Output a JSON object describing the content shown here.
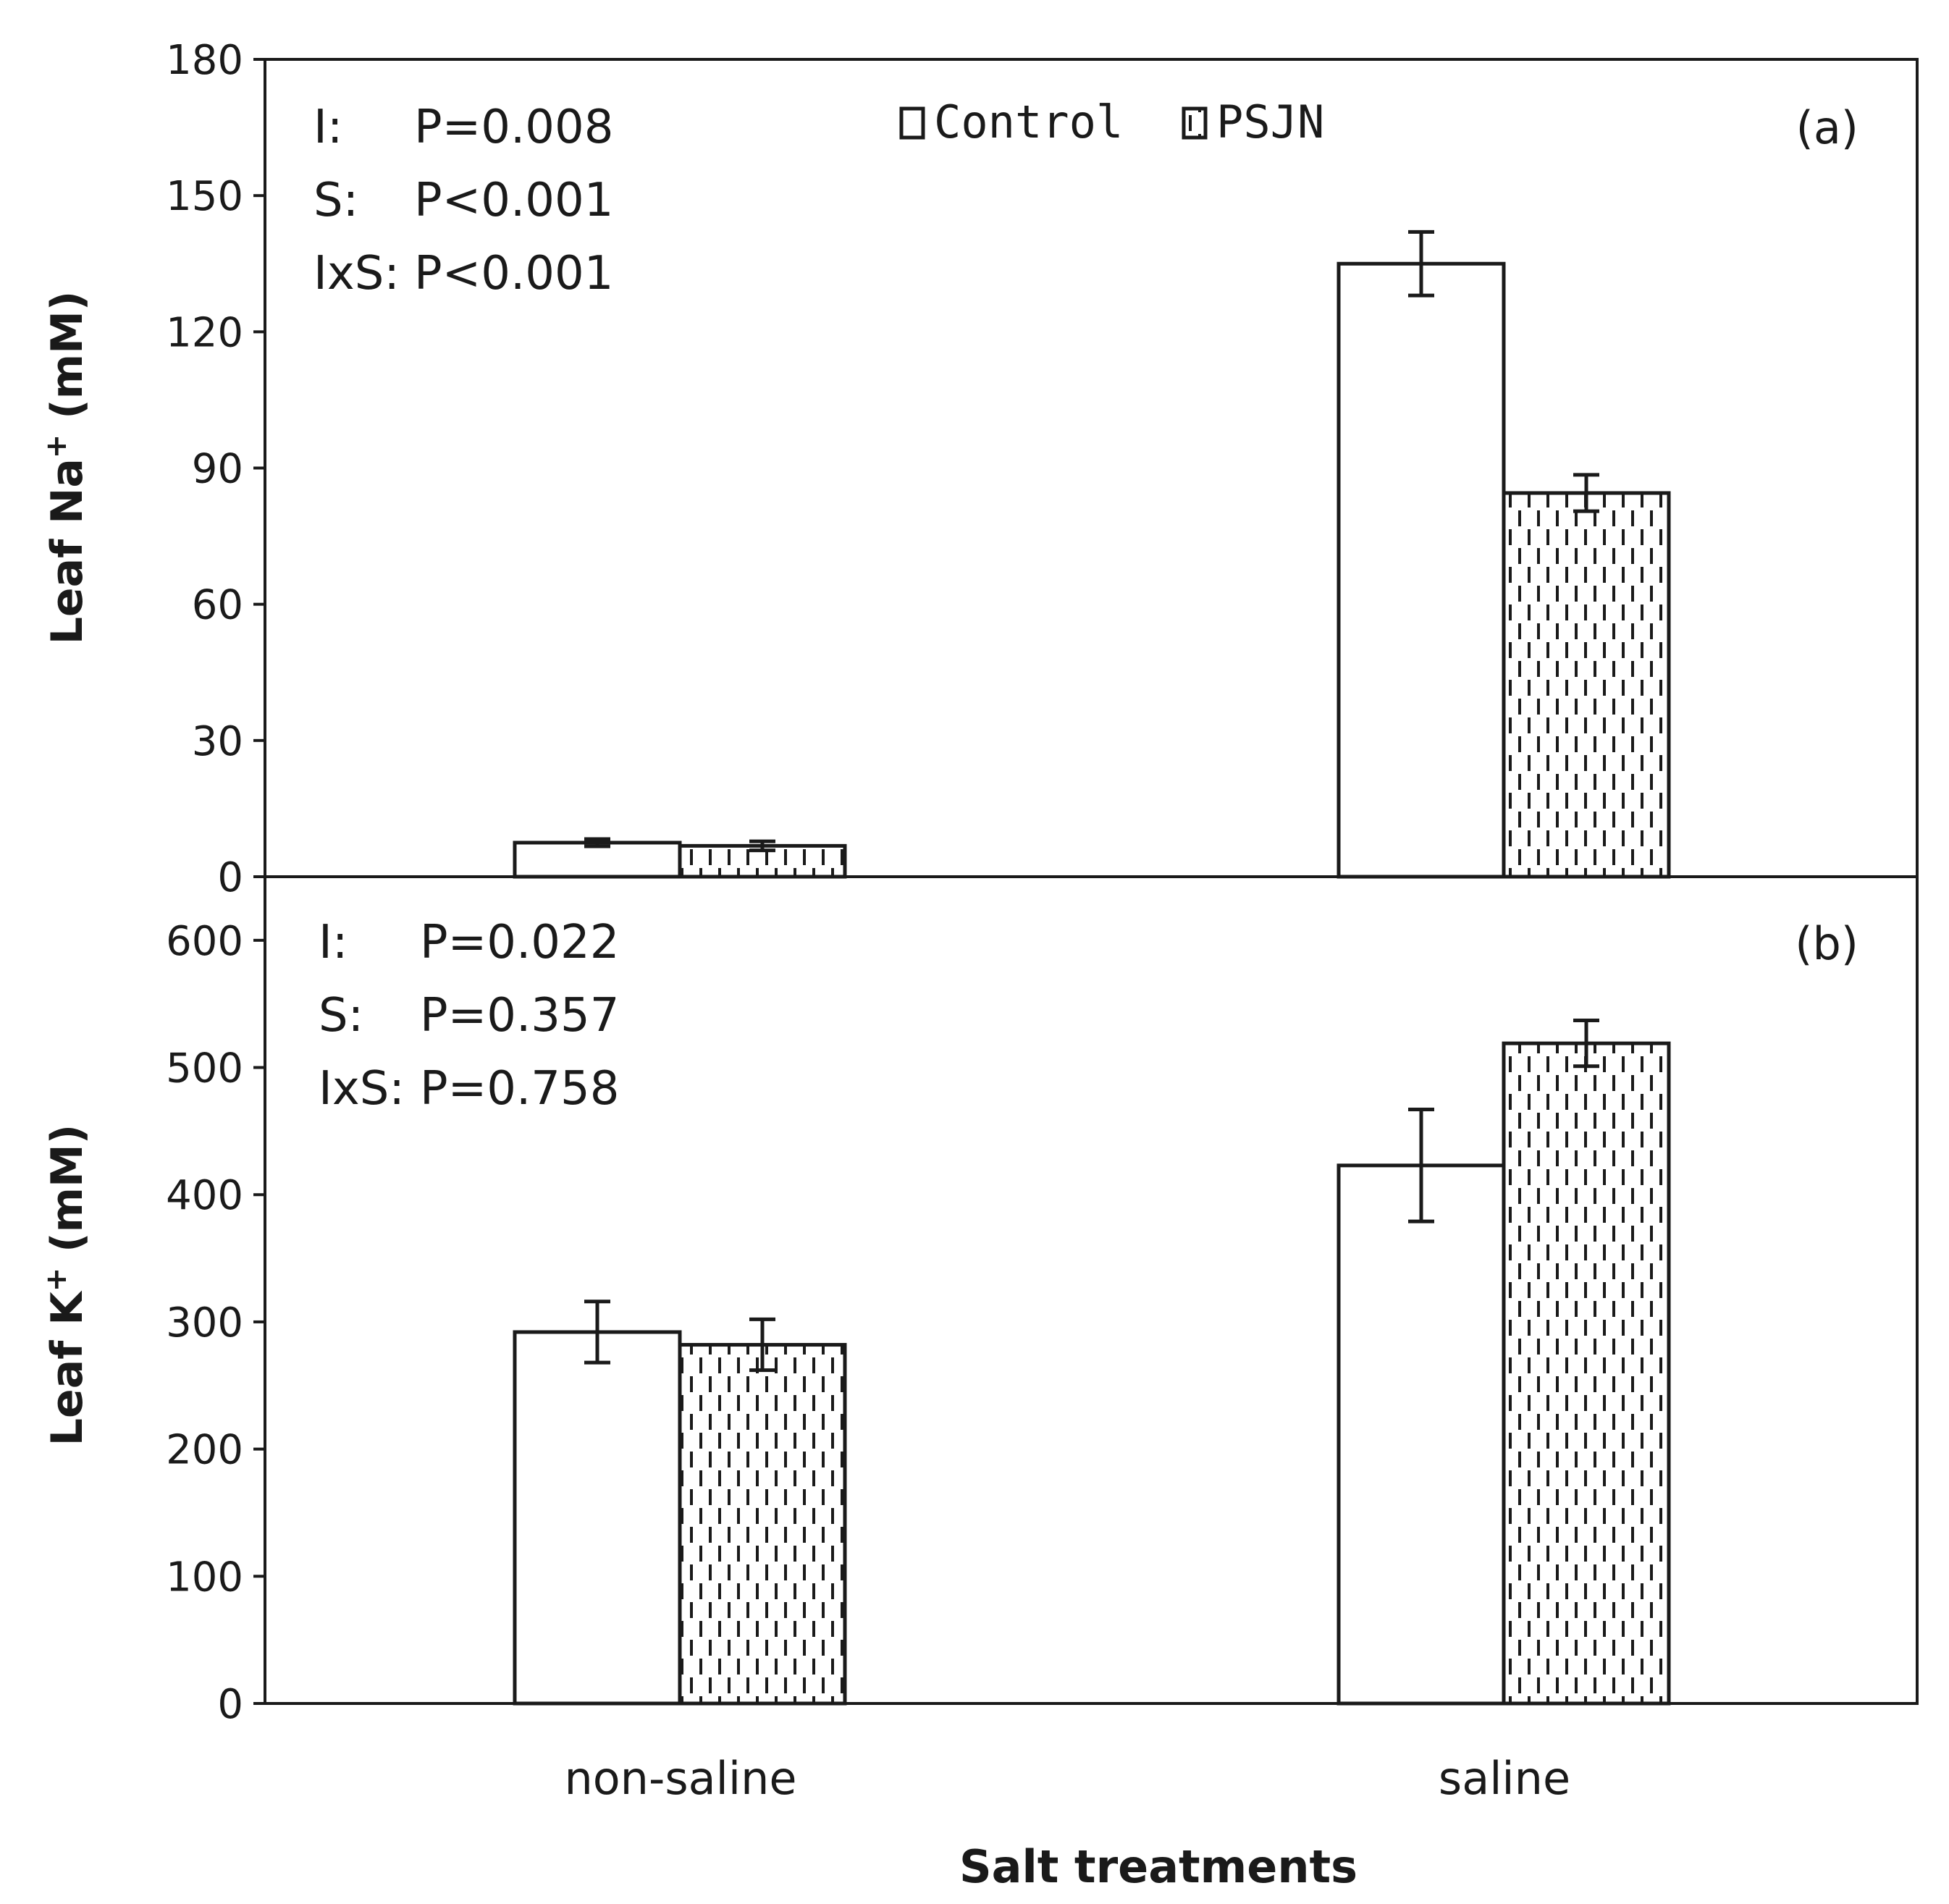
{
  "chart_data": [
    {
      "type": "bar",
      "panel_label": "(a)",
      "ylabel_main": "Leaf Na",
      "ylabel_sup": "+",
      "ylabel_unit": " (mM)",
      "ylim": [
        0,
        180
      ],
      "yticks": [
        "0",
        "30",
        "60",
        "90",
        "120",
        "150",
        "180"
      ],
      "categories": [
        "non-saline",
        "saline"
      ],
      "series": [
        {
          "name": "Control",
          "values": [
            7.5,
            135
          ],
          "errors": [
            0.8,
            7
          ]
        },
        {
          "name": "PSJN",
          "values": [
            6.8,
            84.5
          ],
          "errors": [
            1.0,
            4
          ]
        }
      ],
      "stats": [
        {
          "label": "I:",
          "value": "P=0.008"
        },
        {
          "label": "S:",
          "value": "P<0.001"
        },
        {
          "label": "IxS:",
          "value": "P<0.001"
        }
      ],
      "legend": {
        "position": "top-center"
      }
    },
    {
      "type": "bar",
      "panel_label": "(b)",
      "ylabel_main": "Leaf K",
      "ylabel_sup": "+",
      "ylabel_unit": " (mM)",
      "ylim": [
        0,
        650
      ],
      "yticks": [
        "0",
        "100",
        "200",
        "300",
        "400",
        "500",
        "600"
      ],
      "categories": [
        "non-saline",
        "saline"
      ],
      "series": [
        {
          "name": "Control",
          "values": [
            292,
            423
          ],
          "errors": [
            24,
            44
          ]
        },
        {
          "name": "PSJN",
          "values": [
            282,
            519
          ],
          "errors": [
            20,
            18
          ]
        }
      ],
      "stats": [
        {
          "label": "I:",
          "value": "P=0.022"
        },
        {
          "label": "S:",
          "value": "P=0.357"
        },
        {
          "label": "IxS:",
          "value": "P=0.758"
        }
      ]
    }
  ],
  "xlabel": "Salt treatments",
  "colors": {
    "axis": "#1a1a1a",
    "control_fill": "#ffffff",
    "psjn_fill": "#ffffff",
    "hatch": "#1a1a1a"
  }
}
